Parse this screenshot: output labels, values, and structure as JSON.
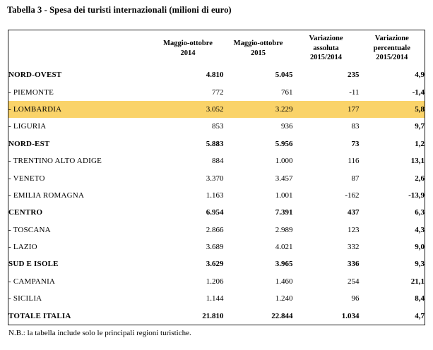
{
  "title": "Tabella 3 - Spesa dei turisti internazionali (milioni di euro)",
  "footnote": "N.B.: la tabella include solo le principali regioni turistiche.",
  "colors": {
    "highlight_row": "#FAD369",
    "table_border": "#1A1A1A",
    "text": "#000000",
    "background": "#FFFFFF"
  },
  "table": {
    "headers": {
      "col2": {
        "lines": [
          "Maggio-ottobre",
          "2014"
        ]
      },
      "col3": {
        "lines": [
          "Maggio-ottobre",
          "2015"
        ]
      },
      "col4": {
        "lines": [
          "Variazione",
          "assoluta",
          "2015/2014"
        ]
      },
      "col5": {
        "lines": [
          "Variazione",
          "percentuale",
          "2015/2014"
        ]
      }
    },
    "rows": [
      {
        "label": "NORD-OVEST",
        "v2014": "4.810",
        "v2015": "5.045",
        "abs": "235",
        "pct": "4,9",
        "bold": true,
        "highlight": false
      },
      {
        "label": "- PIEMONTE",
        "v2014": "772",
        "v2015": "761",
        "abs": "-11",
        "pct": "-1,4",
        "bold": false,
        "highlight": false
      },
      {
        "label": "- LOMBARDIA",
        "v2014": "3.052",
        "v2015": "3.229",
        "abs": "177",
        "pct": "5,8",
        "bold": false,
        "highlight": true
      },
      {
        "label": "- LIGURIA",
        "v2014": "853",
        "v2015": "936",
        "abs": "83",
        "pct": "9,7",
        "bold": false,
        "highlight": false
      },
      {
        "label": "NORD-EST",
        "v2014": "5.883",
        "v2015": "5.956",
        "abs": "73",
        "pct": "1,2",
        "bold": true,
        "highlight": false
      },
      {
        "label": "- TRENTINO ALTO ADIGE",
        "v2014": "884",
        "v2015": "1.000",
        "abs": "116",
        "pct": "13,1",
        "bold": false,
        "highlight": false
      },
      {
        "label": "- VENETO",
        "v2014": "3.370",
        "v2015": "3.457",
        "abs": "87",
        "pct": "2,6",
        "bold": false,
        "highlight": false
      },
      {
        "label": "- EMILIA ROMAGNA",
        "v2014": "1.163",
        "v2015": "1.001",
        "abs": "-162",
        "pct": "-13,9",
        "bold": false,
        "highlight": false
      },
      {
        "label": "CENTRO",
        "v2014": "6.954",
        "v2015": "7.391",
        "abs": "437",
        "pct": "6,3",
        "bold": true,
        "highlight": false
      },
      {
        "label": "- TOSCANA",
        "v2014": "2.866",
        "v2015": "2.989",
        "abs": "123",
        "pct": "4,3",
        "bold": false,
        "highlight": false
      },
      {
        "label": "- LAZIO",
        "v2014": "3.689",
        "v2015": "4.021",
        "abs": "332",
        "pct": "9,0",
        "bold": false,
        "highlight": false
      },
      {
        "label": "SUD E ISOLE",
        "v2014": "3.629",
        "v2015": "3.965",
        "abs": "336",
        "pct": "9,3",
        "bold": true,
        "highlight": false
      },
      {
        "label": "- CAMPANIA",
        "v2014": "1.206",
        "v2015": "1.460",
        "abs": "254",
        "pct": "21,1",
        "bold": false,
        "highlight": false
      },
      {
        "label": "- SICILIA",
        "v2014": "1.144",
        "v2015": "1.240",
        "abs": "96",
        "pct": "8,4",
        "bold": false,
        "highlight": false
      },
      {
        "label": "TOTALE ITALIA",
        "v2014": "21.810",
        "v2015": "22.844",
        "abs": "1.034",
        "pct": "4,7",
        "bold": true,
        "highlight": false
      }
    ]
  }
}
